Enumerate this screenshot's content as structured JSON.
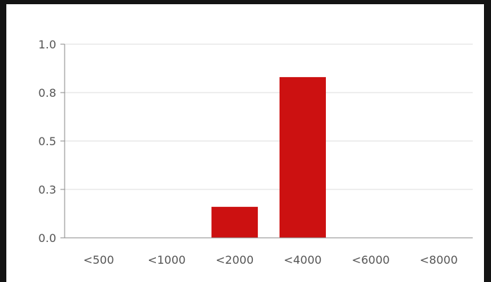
{
  "chart_data": {
    "type": "bar",
    "categories": [
      "<500",
      "<1000",
      "<2000",
      "<4000",
      "<6000",
      "<8000"
    ],
    "values": [
      0.0,
      0.0,
      0.16,
      0.83,
      0.0,
      0.0
    ],
    "y_ticks": [
      "0.0",
      "0.3",
      "0.5",
      "0.8",
      "1.0"
    ],
    "ylim": [
      0,
      1.0
    ],
    "title": "",
    "xlabel": "",
    "ylabel": "",
    "grid": true,
    "bar_color": "#cc1111",
    "grid_color": "#dddddd",
    "axis_color": "#888888"
  }
}
